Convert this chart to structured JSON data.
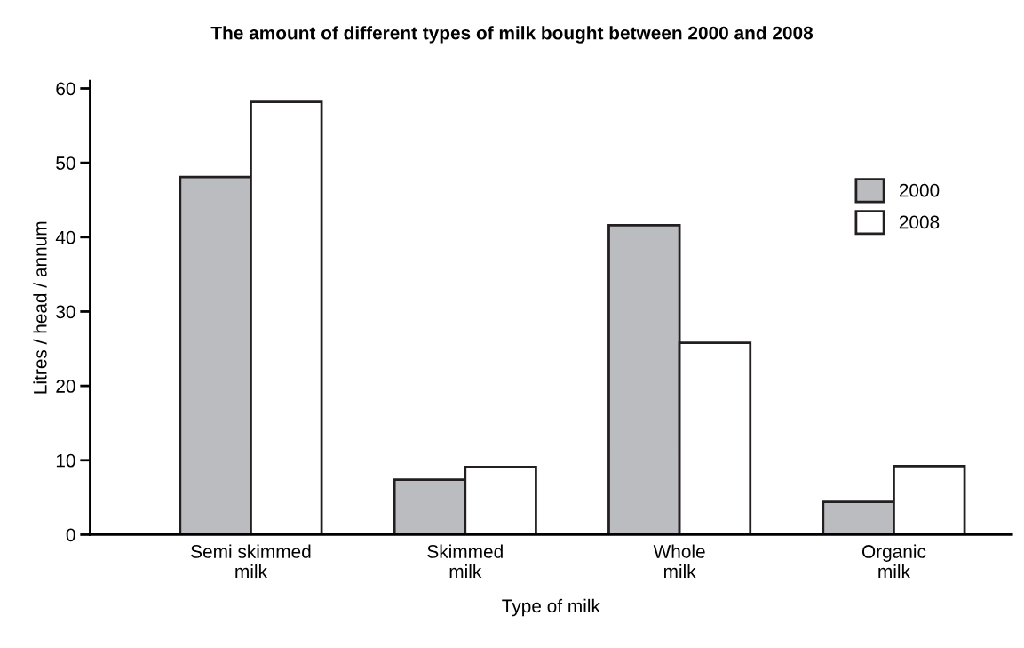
{
  "chart_data": {
    "type": "bar",
    "title": "The amount of different types of milk bought between 2000 and 2008",
    "xlabel": "Type of milk",
    "ylabel": "Litres / head / annum",
    "categories": [
      "Semi skimmed\nmilk",
      "Skimmed\nmilk",
      "Whole\nmilk",
      "Organic\nmilk"
    ],
    "series": [
      {
        "name": "2000",
        "color": "#bbbcc0",
        "values": [
          48.1,
          7.4,
          41.6,
          4.4
        ]
      },
      {
        "name": "2008",
        "color": "#ffffff",
        "values": [
          58.2,
          9.1,
          25.8,
          9.2
        ]
      }
    ],
    "ylim": [
      0,
      61
    ],
    "yticks": [
      0,
      10,
      20,
      30,
      40,
      50,
      60
    ],
    "grid": false,
    "legend": "top right"
  }
}
